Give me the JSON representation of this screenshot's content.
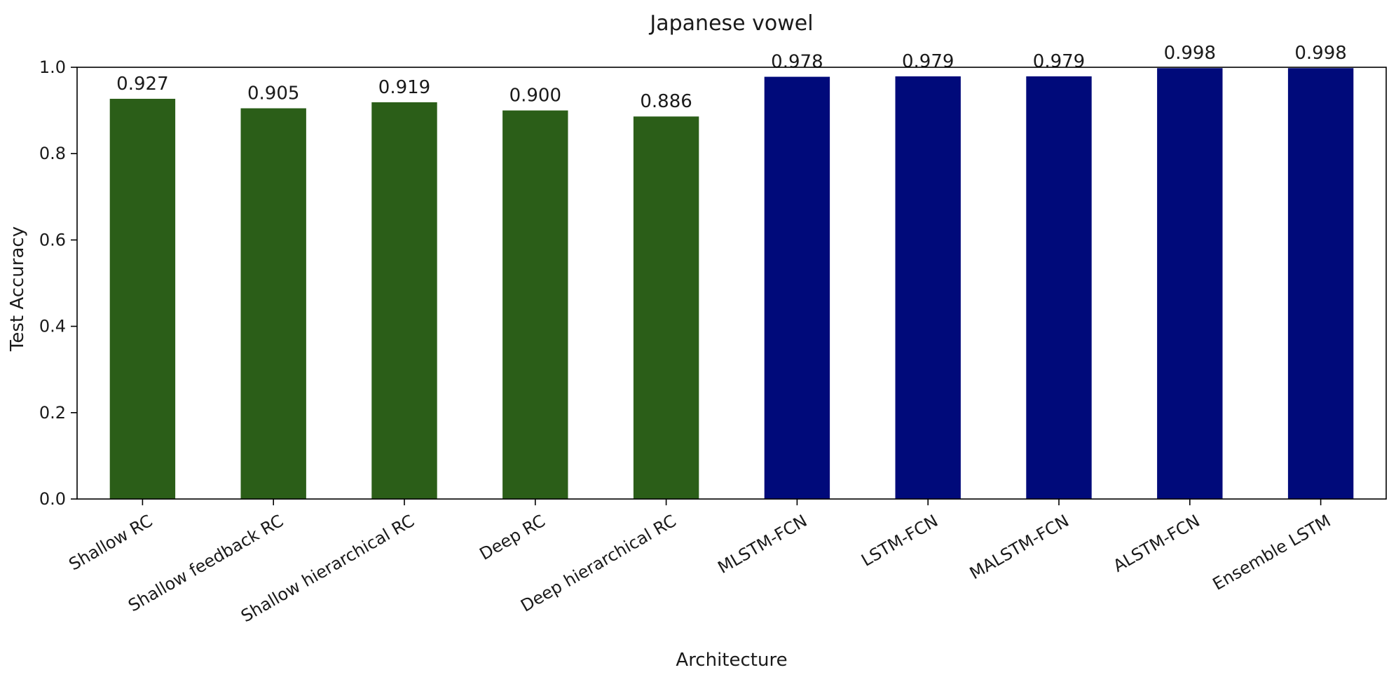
{
  "chart_data": {
    "type": "bar",
    "title": "Japanese vowel",
    "xlabel": "Architecture",
    "ylabel": "Test Accuracy",
    "ylim": [
      0,
      1.0
    ],
    "yticks": [
      "0.0",
      "0.2",
      "0.4",
      "0.6",
      "0.8",
      "1.0"
    ],
    "grid": false,
    "categories": [
      "Shallow RC",
      "Shallow feedback RC",
      "Shallow hierarchical RC",
      "Deep RC",
      "Deep hierarchical RC",
      "MLSTM-FCN",
      "LSTM-FCN",
      "MALSTM-FCN",
      "ALSTM-FCN",
      "Ensemble LSTM"
    ],
    "values": [
      0.927,
      0.905,
      0.919,
      0.9,
      0.886,
      0.978,
      0.979,
      0.979,
      0.998,
      0.998
    ],
    "value_labels": [
      "0.927",
      "0.905",
      "0.919",
      "0.900",
      "0.886",
      "0.978",
      "0.979",
      "0.979",
      "0.998",
      "0.998"
    ],
    "bar_colors": [
      "#2b5e18",
      "#2b5e18",
      "#2b5e18",
      "#2b5e18",
      "#2b5e18",
      "#000a7a",
      "#000a7a",
      "#000a7a",
      "#000a7a",
      "#000a7a"
    ]
  }
}
